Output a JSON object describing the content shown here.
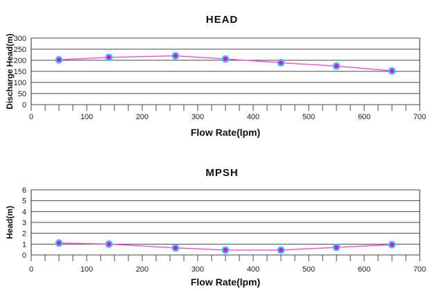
{
  "page": {
    "background": "#ffffff"
  },
  "chart_data": [
    {
      "type": "line",
      "title": "HEAD",
      "xlabel": "Flow Rate(lpm)",
      "ylabel": "Discharge Head(m)",
      "x": [
        50,
        140,
        260,
        350,
        450,
        550,
        650
      ],
      "y": [
        202,
        213,
        220,
        206,
        189,
        174,
        152
      ],
      "xlim": [
        0,
        700
      ],
      "ylim": [
        0,
        300
      ],
      "xticks": [
        0,
        100,
        200,
        300,
        400,
        500,
        600,
        700
      ],
      "yticks": [
        0,
        50,
        100,
        150,
        200,
        250,
        300
      ],
      "xtick_minor_step": 25,
      "grid": "horizontal",
      "legend": "none",
      "line_color": "#ff47d1",
      "marker_fill": "#ff00cc",
      "marker_ring": "#33ccff",
      "grid_color": "#454545",
      "text_color": "#1a1a1a"
    },
    {
      "type": "line",
      "title": "MPSH",
      "xlabel": "Flow Rate(lpm)",
      "ylabel": "Head(m)",
      "x": [
        50,
        140,
        260,
        350,
        450,
        550,
        650
      ],
      "y": [
        1.1,
        1.0,
        0.65,
        0.45,
        0.45,
        0.7,
        0.95
      ],
      "xlim": [
        0,
        700
      ],
      "ylim": [
        0,
        6
      ],
      "xticks": [
        0,
        100,
        200,
        300,
        400,
        500,
        600,
        700
      ],
      "yticks": [
        0,
        1,
        2,
        3,
        4,
        5,
        6
      ],
      "xtick_minor_step": 25,
      "grid": "horizontal",
      "legend": "none",
      "line_color": "#ff47d1",
      "marker_fill": "#ff00cc",
      "marker_ring": "#33ccff",
      "grid_color": "#454545",
      "text_color": "#1a1a1a"
    }
  ]
}
